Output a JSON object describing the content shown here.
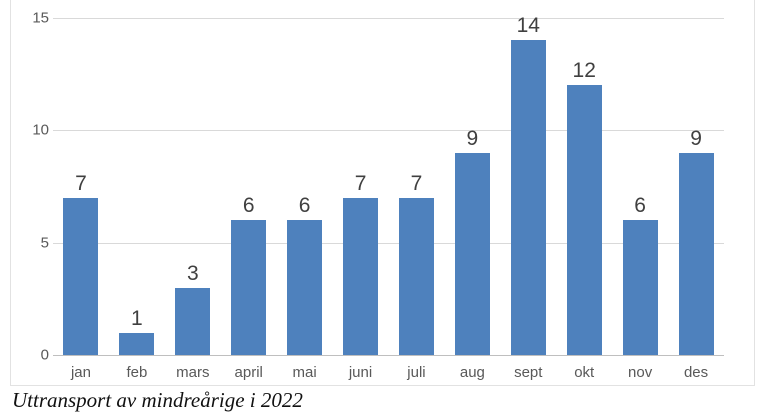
{
  "chart_data": {
    "type": "bar",
    "title": "",
    "xlabel": "",
    "ylabel": "",
    "categories": [
      "jan",
      "feb",
      "mars",
      "april",
      "mai",
      "juni",
      "juli",
      "aug",
      "sept",
      "okt",
      "nov",
      "des"
    ],
    "values": [
      7,
      1,
      3,
      6,
      6,
      7,
      7,
      9,
      14,
      12,
      6,
      9
    ],
    "data_labels_shown": true,
    "ylim": [
      0,
      15
    ],
    "yticks": [
      0,
      5,
      10,
      15
    ],
    "grid": true,
    "legend_position": "none",
    "bar_color": "#4E81BD",
    "gridline_color": "#d9d9d9",
    "axis_line_color": "#bfbfbf",
    "tick_label_color": "#595959",
    "data_label_color": "#404040"
  },
  "caption": "Uttransport av mindreårige i 2022"
}
